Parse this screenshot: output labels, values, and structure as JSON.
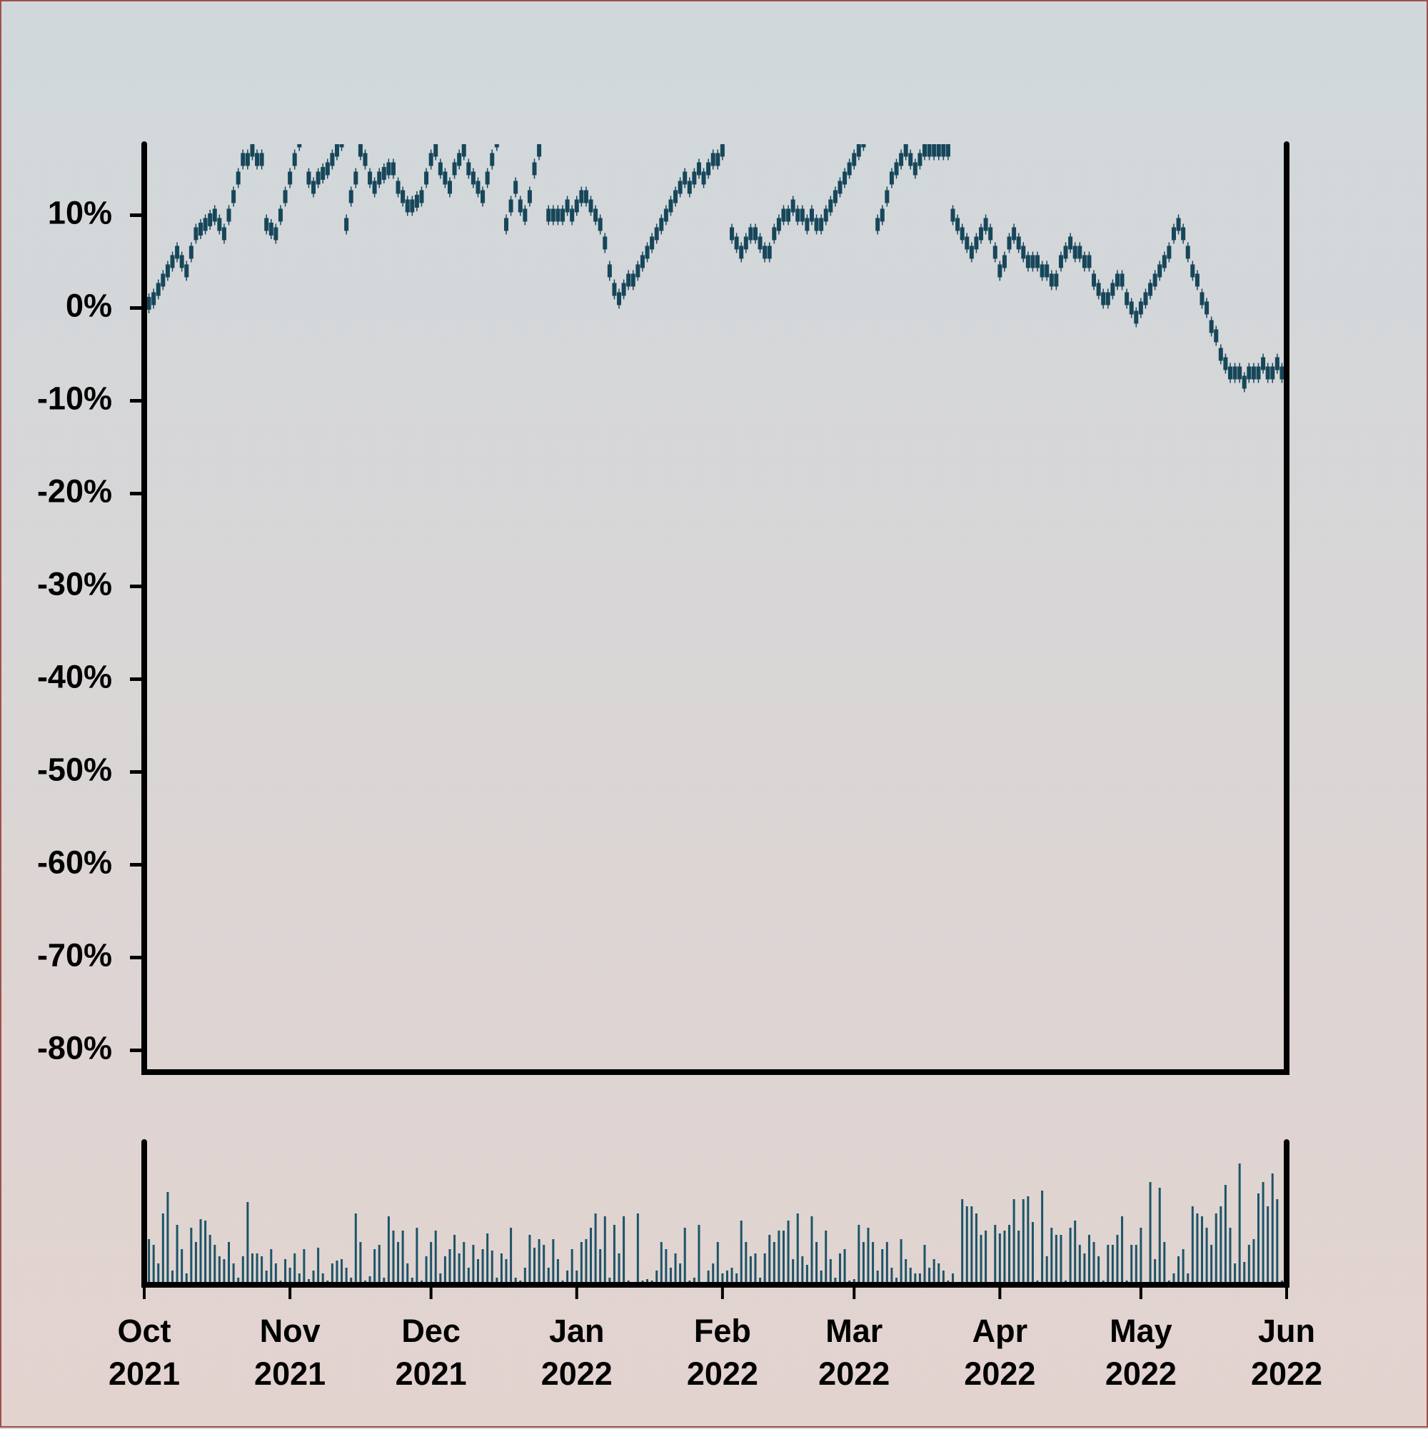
{
  "chart_data": [
    {
      "type": "candlestick",
      "color": "#17465a",
      "categories": [
        "Oct 2021",
        null,
        null,
        null,
        null,
        null,
        null,
        null,
        null,
        null,
        null,
        null,
        null,
        null,
        null,
        null,
        null,
        null,
        null,
        null,
        null,
        null,
        null,
        null,
        null,
        null,
        null,
        null,
        null,
        null,
        null,
        "Nov 2021",
        null,
        null,
        null,
        null,
        null,
        null,
        null,
        null,
        null,
        null,
        null,
        null,
        null,
        null,
        null,
        null,
        null,
        null,
        null,
        null,
        null,
        null,
        null,
        null,
        null,
        null,
        null,
        null,
        null,
        "Dec 2021",
        null,
        null,
        null,
        null,
        null,
        null,
        null,
        null,
        null,
        null,
        null,
        null,
        null,
        null,
        null,
        null,
        null,
        null,
        null,
        null,
        null,
        null,
        null,
        null,
        null,
        null,
        null,
        null,
        null,
        null,
        "Jan 2022",
        null,
        null,
        null,
        null,
        null,
        null,
        null,
        null,
        null,
        null,
        null,
        null,
        null,
        null,
        null,
        null,
        null,
        null,
        null,
        null,
        null,
        null,
        null,
        null,
        null,
        null,
        null,
        null,
        null,
        null,
        "Feb 2022",
        null,
        null,
        null,
        null,
        null,
        null,
        null,
        null,
        null,
        null,
        null,
        null,
        null,
        null,
        null,
        null,
        null,
        null,
        null,
        null,
        null,
        null,
        null,
        null,
        null,
        null,
        null,
        "Mar 2022",
        null,
        null,
        null,
        null,
        null,
        null,
        null,
        null,
        null,
        null,
        null,
        null,
        null,
        null,
        null,
        null,
        null,
        null,
        null,
        null,
        null,
        null,
        null,
        null,
        null,
        null,
        null,
        null,
        null,
        null,
        "Apr 2022",
        null,
        null,
        null,
        null,
        null,
        null,
        null,
        null,
        null,
        null,
        null,
        null,
        null,
        null,
        null,
        null,
        null,
        null,
        null,
        null,
        null,
        null,
        null,
        null,
        null,
        null,
        null,
        null,
        null,
        "May 2022",
        null,
        null,
        null,
        null,
        null,
        null,
        null,
        null,
        null,
        null,
        null,
        null,
        null,
        null,
        null,
        null,
        null,
        null,
        null,
        null,
        null,
        null,
        null,
        null,
        null,
        null,
        null,
        null,
        null,
        null,
        "Jun 2022"
      ],
      "values": [
        0,
        0.5,
        1,
        2,
        3,
        4,
        5,
        6,
        5,
        4,
        6,
        8,
        8.5,
        9,
        9.5,
        10,
        9,
        8,
        10,
        12,
        14,
        16,
        16,
        17,
        16,
        16,
        9,
        8.5,
        8,
        10,
        12,
        14,
        16,
        18,
        19,
        14,
        13,
        14,
        14.5,
        15,
        16,
        17,
        18,
        9,
        12,
        14,
        17,
        16,
        14,
        13,
        14,
        14.5,
        15,
        15,
        13,
        12,
        11,
        11,
        11.5,
        12,
        14,
        16,
        17,
        15,
        14,
        13,
        15,
        16,
        17,
        15,
        14,
        13,
        12,
        14,
        16,
        18,
        19,
        9,
        11,
        13,
        11,
        10,
        12,
        15,
        17,
        19,
        10,
        10,
        10,
        10,
        11,
        10,
        11,
        12,
        12,
        11,
        10,
        9,
        7,
        4,
        2,
        1,
        2,
        3,
        3,
        4,
        5,
        6,
        7,
        8,
        9,
        10,
        11,
        12,
        13,
        14,
        13,
        14,
        15,
        14,
        15,
        16,
        16,
        17,
        19,
        8,
        7,
        6,
        7,
        8,
        8,
        7,
        6,
        6,
        8,
        9,
        10,
        10,
        11,
        10,
        10,
        9,
        10,
        9,
        9,
        10,
        11,
        12,
        13,
        14,
        15,
        16,
        17,
        18,
        19,
        20,
        9,
        10,
        12,
        14,
        15,
        16,
        17,
        16,
        15,
        16,
        17,
        17,
        17,
        17,
        17,
        17,
        10,
        9,
        8,
        7,
        6,
        7,
        8,
        9,
        8,
        6,
        4,
        5,
        7,
        8,
        7,
        6,
        5,
        5,
        5,
        4,
        4,
        3,
        3,
        5,
        6,
        7,
        6,
        6,
        5,
        5,
        3,
        2,
        1,
        1,
        2,
        3,
        3,
        1,
        0,
        -1,
        0,
        1,
        2,
        3,
        4,
        5,
        6,
        8,
        9,
        8,
        6,
        4,
        3,
        1,
        0,
        -2,
        -3,
        -5,
        -6,
        -7,
        -7,
        -7,
        -8,
        -7,
        -7,
        -7,
        -6,
        -7,
        -7,
        -6,
        -7,
        -7
      ],
      "ylim": [
        -82.35,
        17.65
      ],
      "yticks": [
        {
          "value": 10,
          "label": "10%"
        },
        {
          "value": 0,
          "label": "0%"
        },
        {
          "value": -10,
          "label": "-10%"
        },
        {
          "value": -20,
          "label": "-20%"
        },
        {
          "value": -30,
          "label": "-30%"
        },
        {
          "value": -40,
          "label": "-40%"
        },
        {
          "value": -50,
          "label": "-50%"
        },
        {
          "value": -60,
          "label": "-60%"
        },
        {
          "value": -70,
          "label": "-70%"
        },
        {
          "value": -80,
          "label": "-80%"
        }
      ]
    },
    {
      "type": "bar",
      "color": "#1d5468",
      "ylim": [
        0,
        100
      ],
      "values": [
        30,
        32,
        28,
        15,
        50,
        65,
        10,
        42,
        25,
        8,
        40,
        30,
        46,
        45,
        35,
        28,
        20,
        18,
        30,
        15,
        5,
        20,
        58,
        22,
        22,
        20,
        10,
        25,
        15,
        3,
        18,
        12,
        22,
        8,
        25,
        4,
        10,
        26,
        8,
        3,
        15,
        17,
        18,
        12,
        5,
        50,
        30,
        3,
        6,
        25,
        28,
        5,
        48,
        38,
        30,
        38,
        15,
        5,
        40,
        3,
        20,
        30,
        38,
        8,
        20,
        25,
        35,
        22,
        30,
        12,
        28,
        18,
        25,
        36,
        24,
        5,
        22,
        18,
        40,
        5,
        3,
        12,
        35,
        26,
        32,
        28,
        12,
        32,
        18,
        3,
        10,
        25,
        10,
        30,
        32,
        40,
        50,
        25,
        48,
        5,
        42,
        22,
        48,
        3,
        2,
        50,
        3,
        4,
        3,
        10,
        30,
        25,
        12,
        22,
        15,
        40,
        3,
        5,
        42,
        2,
        10,
        15,
        30,
        8,
        10,
        12,
        8,
        45,
        30,
        20,
        22,
        5,
        22,
        35,
        30,
        38,
        38,
        45,
        18,
        50,
        20,
        14,
        48,
        30,
        10,
        38,
        18,
        5,
        22,
        25,
        3,
        4,
        42,
        30,
        40,
        30,
        10,
        25,
        30,
        12,
        5,
        32,
        18,
        12,
        8,
        8,
        28,
        12,
        18,
        15,
        10,
        3,
        8,
        2,
        60,
        55,
        55,
        50,
        35,
        38,
        2,
        42,
        36,
        38,
        42,
        60,
        38,
        60,
        62,
        44,
        3,
        66,
        20,
        40,
        35,
        35,
        3,
        40,
        45,
        28,
        22,
        35,
        30,
        20,
        3,
        28,
        28,
        35,
        48,
        3,
        28,
        28,
        40,
        2,
        72,
        18,
        68,
        30,
        3,
        8,
        20,
        25,
        8,
        55,
        50,
        48,
        40,
        28,
        50,
        55,
        70,
        40,
        15,
        85,
        16,
        28,
        32,
        64,
        72,
        55,
        78,
        60,
        3,
        65
      ]
    }
  ]
}
